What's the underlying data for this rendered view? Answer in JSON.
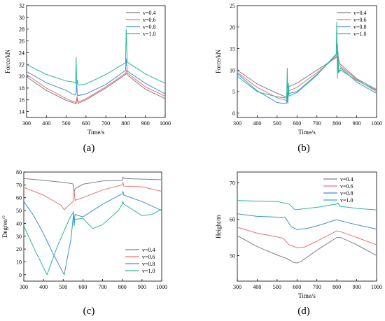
{
  "colors": {
    "v04": "#808080",
    "v06": "#f07070",
    "v08": "#3c8fd8",
    "v10": "#27b89a"
  },
  "chart_data": [
    {
      "id": "a",
      "type": "line",
      "caption": "(a)",
      "title": "",
      "xlabel": "Time/s",
      "ylabel": "Force/kN",
      "xlim": [
        300,
        1000
      ],
      "ylim": [
        13,
        32
      ],
      "xticks": [
        300,
        400,
        500,
        600,
        700,
        800,
        900,
        1000
      ],
      "yticks": [
        14,
        16,
        18,
        20,
        22,
        24,
        26,
        28,
        30,
        32
      ],
      "legend": "top-right",
      "grid": false,
      "series": [
        {
          "name": "v=0.4",
          "color_key": "v04",
          "x": [
            300,
            400,
            500,
            545,
            550,
            555,
            560,
            600,
            700,
            800,
            805,
            810,
            900,
            1000
          ],
          "y": [
            19.9,
            17.6,
            15.9,
            15.4,
            15.3,
            16.2,
            15.4,
            16.0,
            18.0,
            20.3,
            20.5,
            20.2,
            17.8,
            16.2
          ]
        },
        {
          "name": "v=0.6",
          "color_key": "v06",
          "x": [
            300,
            400,
            500,
            545,
            550,
            555,
            560,
            600,
            700,
            800,
            805,
            810,
            900,
            1000
          ],
          "y": [
            20.3,
            18.0,
            16.2,
            15.6,
            15.5,
            16.6,
            15.6,
            16.2,
            18.2,
            20.5,
            21.0,
            20.5,
            18.2,
            16.6
          ]
        },
        {
          "name": "v=0.8",
          "color_key": "v08",
          "x": [
            300,
            400,
            500,
            530,
            545,
            550,
            553,
            556,
            560,
            600,
            700,
            800,
            803,
            808,
            900,
            1000
          ],
          "y": [
            20.8,
            18.9,
            17.6,
            17.0,
            16.8,
            17.2,
            19.0,
            16.8,
            16.7,
            17.0,
            18.6,
            21.0,
            23.0,
            20.9,
            18.8,
            17.0
          ]
        },
        {
          "name": "v=1.0",
          "color_key": "v10",
          "x": [
            300,
            400,
            500,
            540,
            548,
            550,
            553,
            556,
            560,
            600,
            700,
            800,
            803,
            808,
            900,
            1000
          ],
          "y": [
            22.0,
            20.3,
            19.2,
            19.0,
            18.8,
            23.3,
            18.6,
            19.4,
            18.5,
            18.7,
            20.3,
            22.3,
            28.0,
            22.4,
            20.4,
            18.8
          ]
        }
      ]
    },
    {
      "id": "b",
      "type": "line",
      "caption": "(b)",
      "title": "",
      "xlabel": "Time/s",
      "ylabel": "Force/kN",
      "xlim": [
        300,
        1000
      ],
      "ylim": [
        -1,
        25
      ],
      "xticks": [
        300,
        400,
        500,
        600,
        700,
        800,
        900,
        1000
      ],
      "yticks": [
        0,
        5,
        10,
        15,
        20,
        25
      ],
      "legend": "top-right",
      "grid": false,
      "series": [
        {
          "name": "v=0.4",
          "color_key": "v04",
          "x": [
            300,
            400,
            500,
            545,
            550,
            555,
            560,
            600,
            700,
            800,
            805,
            815,
            900,
            1000
          ],
          "y": [
            10.0,
            6.8,
            4.6,
            3.8,
            3.5,
            6.0,
            6.2,
            7.0,
            10.0,
            13.0,
            13.5,
            11.5,
            8.0,
            5.5
          ]
        },
        {
          "name": "v=0.6",
          "color_key": "v06",
          "x": [
            300,
            400,
            500,
            545,
            550,
            555,
            560,
            600,
            700,
            800,
            805,
            815,
            900,
            1000
          ],
          "y": [
            9.5,
            6.0,
            3.6,
            3.0,
            2.7,
            5.0,
            5.2,
            6.0,
            9.4,
            13.2,
            13.6,
            11.0,
            7.8,
            5.0
          ]
        },
        {
          "name": "v=0.8",
          "color_key": "v08",
          "x": [
            300,
            400,
            500,
            540,
            548,
            551,
            554,
            557,
            560,
            600,
            700,
            800,
            803,
            808,
            820,
            900,
            1000
          ],
          "y": [
            9.2,
            5.2,
            2.5,
            2.2,
            2.4,
            4.8,
            2.2,
            5.5,
            4.6,
            5.0,
            9.0,
            13.6,
            16.0,
            9.5,
            10.5,
            7.2,
            4.6
          ]
        },
        {
          "name": "v=1.0",
          "color_key": "v10",
          "x": [
            300,
            400,
            500,
            540,
            548,
            551,
            554,
            557,
            560,
            600,
            700,
            797,
            800,
            803,
            806,
            809,
            820,
            900,
            1000
          ],
          "y": [
            8.6,
            5.0,
            3.8,
            3.6,
            3.4,
            10.5,
            3.2,
            7.0,
            4.0,
            4.8,
            8.8,
            13.8,
            21.2,
            8.0,
            14.5,
            9.5,
            10.0,
            7.6,
            5.3
          ]
        }
      ]
    },
    {
      "id": "c",
      "type": "line",
      "caption": "(c)",
      "title": "",
      "xlabel": "",
      "ylabel": "Degree/°",
      "xlim": [
        300,
        1000
      ],
      "ylim": [
        -5,
        80
      ],
      "xticks": [
        300,
        400,
        500,
        600,
        700,
        800,
        900,
        1000
      ],
      "yticks": [
        0,
        10,
        20,
        30,
        40,
        50,
        60,
        70,
        80
      ],
      "legend": "bottom-right",
      "grid": false,
      "series": [
        {
          "name": "v=0.4",
          "color_key": "v04",
          "x": [
            300,
            400,
            500,
            545,
            550,
            555,
            560,
            600,
            700,
            800,
            803,
            810,
            900,
            1000
          ],
          "y": [
            75,
            73.5,
            72,
            71,
            70.5,
            64,
            67,
            70.5,
            73,
            73.5,
            76,
            75,
            74.5,
            74
          ]
        },
        {
          "name": "v=0.6",
          "color_key": "v06",
          "x": [
            300,
            400,
            490,
            505,
            520,
            550,
            555,
            560,
            600,
            700,
            800,
            803,
            808,
            900,
            1000
          ],
          "y": [
            68,
            62,
            54,
            50.5,
            53,
            57,
            66,
            58,
            60,
            66,
            70,
            72,
            69,
            68.5,
            65
          ]
        },
        {
          "name": "v=0.8",
          "color_key": "v08",
          "x": [
            300,
            350,
            400,
            450,
            505,
            540,
            552,
            556,
            560,
            600,
            700,
            800,
            803,
            808,
            900,
            1000
          ],
          "y": [
            57,
            46,
            32,
            16,
            0,
            28,
            47,
            38,
            47,
            45,
            55,
            63,
            65,
            62,
            57,
            50
          ]
        },
        {
          "name": "v=1.0",
          "color_key": "v10",
          "x": [
            300,
            360,
            418,
            470,
            530,
            552,
            556,
            600,
            650,
            700,
            780,
            800,
            803,
            808,
            860,
            900,
            950,
            1000
          ],
          "y": [
            38,
            18,
            0,
            22,
            43,
            49,
            43,
            44,
            36,
            39,
            50,
            55,
            57,
            55,
            50,
            46,
            47,
            51
          ]
        }
      ]
    },
    {
      "id": "d",
      "type": "line",
      "caption": "(d)",
      "title": "",
      "xlabel": "Time/s",
      "ylabel": "Height/m",
      "xlim": [
        300,
        1000
      ],
      "ylim": [
        43,
        73
      ],
      "xticks": [
        300,
        400,
        500,
        600,
        700,
        800,
        900,
        1000
      ],
      "yticks": [
        50,
        60,
        70
      ],
      "legend": "top-right",
      "grid": false,
      "series": [
        {
          "name": "v=0.4",
          "color_key": "v04",
          "x": [
            300,
            400,
            500,
            550,
            580,
            600,
            620,
            700,
            800,
            820,
            900,
            1000
          ],
          "y": [
            55.5,
            52.5,
            50.2,
            49.2,
            48.2,
            48.0,
            48.4,
            51.5,
            55.0,
            55.0,
            53.0,
            50.0
          ]
        },
        {
          "name": "v=0.6",
          "color_key": "v06",
          "x": [
            300,
            400,
            500,
            530,
            560,
            600,
            640,
            700,
            800,
            820,
            900,
            1000
          ],
          "y": [
            57.8,
            56.2,
            55.2,
            54.8,
            53.0,
            52.2,
            52.4,
            54.0,
            56.8,
            56.6,
            55.0,
            53.0
          ]
        },
        {
          "name": "v=0.8",
          "color_key": "v08",
          "x": [
            300,
            400,
            500,
            540,
            570,
            600,
            650,
            700,
            800,
            810,
            900,
            1000
          ],
          "y": [
            61.5,
            60.8,
            60.6,
            60.6,
            58.0,
            57.2,
            57.5,
            58.2,
            59.9,
            59.7,
            58.5,
            57.3
          ]
        },
        {
          "name": "v=1.0",
          "color_key": "v10",
          "x": [
            300,
            400,
            500,
            560,
            590,
            620,
            700,
            800,
            805,
            815,
            900,
            1000
          ],
          "y": [
            65.2,
            65.0,
            64.9,
            64.2,
            62.6,
            62.8,
            63.3,
            64.2,
            64.5,
            63.6,
            63.0,
            62.6
          ]
        }
      ]
    }
  ]
}
